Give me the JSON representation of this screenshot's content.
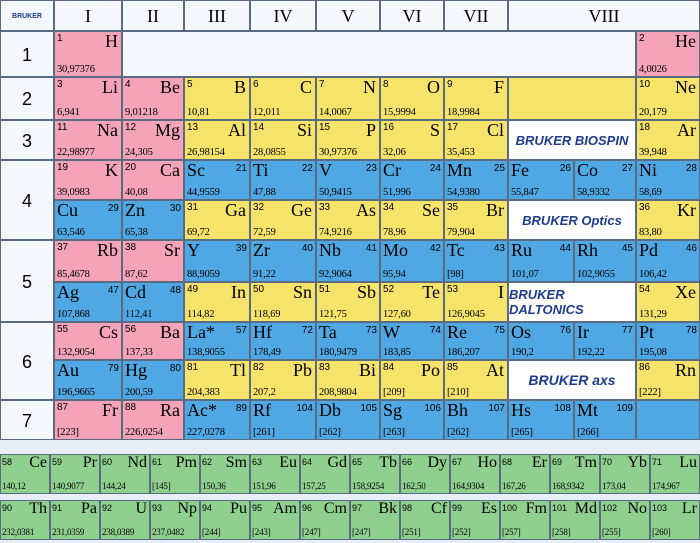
{
  "corner_logo": "BRUKER",
  "groups": [
    "I",
    "II",
    "III",
    "IV",
    "V",
    "VI",
    "VII",
    "VIII"
  ],
  "periods": [
    "1",
    "2",
    "3",
    "4",
    "5",
    "6",
    "7"
  ],
  "brands": {
    "biospin": "BRUKER BIOSPIN",
    "optics": "BRUKER Optics",
    "daltonics": "BRUKER DALTONICS",
    "axs": "BRUKER axs"
  },
  "elements": [
    {
      "n": "1",
      "s": "H",
      "m": "30,97376",
      "color": "pink",
      "r": 1,
      "c": 0,
      "side": "L"
    },
    {
      "n": "2",
      "s": "He",
      "m": "4,0026",
      "color": "pink",
      "r": 1,
      "c": 10,
      "side": "L"
    },
    {
      "n": "3",
      "s": "Li",
      "m": "6,941",
      "color": "pink",
      "r": 2,
      "c": 0,
      "side": "L"
    },
    {
      "n": "4",
      "s": "Be",
      "m": "9,01218",
      "color": "pink",
      "r": 2,
      "c": 1,
      "side": "L"
    },
    {
      "n": "5",
      "s": "B",
      "m": "10,81",
      "color": "yellow",
      "r": 2,
      "c": 2,
      "side": "L"
    },
    {
      "n": "6",
      "s": "C",
      "m": "12,011",
      "color": "yellow",
      "r": 2,
      "c": 3,
      "side": "L"
    },
    {
      "n": "7",
      "s": "N",
      "m": "14,0067",
      "color": "yellow",
      "r": 2,
      "c": 4,
      "side": "L"
    },
    {
      "n": "8",
      "s": "O",
      "m": "15,9994",
      "color": "yellow",
      "r": 2,
      "c": 5,
      "side": "L"
    },
    {
      "n": "9",
      "s": "F",
      "m": "18,9984",
      "color": "yellow",
      "r": 2,
      "c": 6,
      "side": "L"
    },
    {
      "n": "10",
      "s": "Ne",
      "m": "20,179",
      "color": "yellow",
      "r": 2,
      "c": 10,
      "side": "L"
    },
    {
      "n": "11",
      "s": "Na",
      "m": "22,98977",
      "color": "pink",
      "r": 3,
      "c": 0,
      "side": "L"
    },
    {
      "n": "12",
      "s": "Mg",
      "m": "24,305",
      "color": "pink",
      "r": 3,
      "c": 1,
      "side": "L"
    },
    {
      "n": "13",
      "s": "Al",
      "m": "26,98154",
      "color": "yellow",
      "r": 3,
      "c": 2,
      "side": "L"
    },
    {
      "n": "14",
      "s": "Si",
      "m": "28,0855",
      "color": "yellow",
      "r": 3,
      "c": 3,
      "side": "L"
    },
    {
      "n": "15",
      "s": "P",
      "m": "30,97376",
      "color": "yellow",
      "r": 3,
      "c": 4,
      "side": "L"
    },
    {
      "n": "16",
      "s": "S",
      "m": "32,06",
      "color": "yellow",
      "r": 3,
      "c": 5,
      "side": "L"
    },
    {
      "n": "17",
      "s": "Cl",
      "m": "35,453",
      "color": "yellow",
      "r": 3,
      "c": 6,
      "side": "L"
    },
    {
      "n": "18",
      "s": "Ar",
      "m": "39,948",
      "color": "yellow",
      "r": 3,
      "c": 10,
      "side": "L"
    },
    {
      "n": "19",
      "s": "K",
      "m": "39,0983",
      "color": "pink",
      "r": 4,
      "c": 0,
      "side": "L"
    },
    {
      "n": "20",
      "s": "Ca",
      "m": "40,08",
      "color": "pink",
      "r": 4,
      "c": 1,
      "side": "L"
    },
    {
      "n": "21",
      "s": "Sc",
      "m": "44,9559",
      "color": "blue",
      "r": 4,
      "c": 2,
      "side": "R"
    },
    {
      "n": "22",
      "s": "Ti",
      "m": "47,88",
      "color": "blue",
      "r": 4,
      "c": 3,
      "side": "R"
    },
    {
      "n": "23",
      "s": "V",
      "m": "50,9415",
      "color": "blue",
      "r": 4,
      "c": 4,
      "side": "R"
    },
    {
      "n": "24",
      "s": "Cr",
      "m": "51,996",
      "color": "blue",
      "r": 4,
      "c": 5,
      "side": "R"
    },
    {
      "n": "25",
      "s": "Mn",
      "m": "54,9380",
      "color": "blue",
      "r": 4,
      "c": 6,
      "side": "R"
    },
    {
      "n": "26",
      "s": "Fe",
      "m": "55,847",
      "color": "blue",
      "r": 4,
      "c": 7,
      "side": "R"
    },
    {
      "n": "27",
      "s": "Co",
      "m": "58,9332",
      "color": "blue",
      "r": 4,
      "c": 8,
      "side": "R"
    },
    {
      "n": "28",
      "s": "Ni",
      "m": "58,69",
      "color": "blue",
      "r": 4,
      "c": 10,
      "side": "R"
    },
    {
      "n": "29",
      "s": "Cu",
      "m": "63,546",
      "color": "blue",
      "r": 4.5,
      "c": 0,
      "side": "R"
    },
    {
      "n": "30",
      "s": "Zn",
      "m": "65,38",
      "color": "blue",
      "r": 4.5,
      "c": 1,
      "side": "R"
    },
    {
      "n": "31",
      "s": "Ga",
      "m": "69,72",
      "color": "yellow",
      "r": 4.5,
      "c": 2,
      "side": "L"
    },
    {
      "n": "32",
      "s": "Ge",
      "m": "72,59",
      "color": "yellow",
      "r": 4.5,
      "c": 3,
      "side": "L"
    },
    {
      "n": "33",
      "s": "As",
      "m": "74,9216",
      "color": "yellow",
      "r": 4.5,
      "c": 4,
      "side": "L"
    },
    {
      "n": "34",
      "s": "Se",
      "m": "78,96",
      "color": "yellow",
      "r": 4.5,
      "c": 5,
      "side": "L"
    },
    {
      "n": "35",
      "s": "Br",
      "m": "79,904",
      "color": "yellow",
      "r": 4.5,
      "c": 6,
      "side": "L"
    },
    {
      "n": "36",
      "s": "Kr",
      "m": "83,80",
      "color": "yellow",
      "r": 4.5,
      "c": 10,
      "side": "L"
    },
    {
      "n": "37",
      "s": "Rb",
      "m": "85,4678",
      "color": "pink",
      "r": 5,
      "c": 0,
      "side": "L"
    },
    {
      "n": "38",
      "s": "Sr",
      "m": "87,62",
      "color": "pink",
      "r": 5,
      "c": 1,
      "side": "L"
    },
    {
      "n": "39",
      "s": "Y",
      "m": "88,9059",
      "color": "blue",
      "r": 5,
      "c": 2,
      "side": "R"
    },
    {
      "n": "40",
      "s": "Zr",
      "m": "91,22",
      "color": "blue",
      "r": 5,
      "c": 3,
      "side": "R"
    },
    {
      "n": "41",
      "s": "Nb",
      "m": "92,9064",
      "color": "blue",
      "r": 5,
      "c": 4,
      "side": "R"
    },
    {
      "n": "42",
      "s": "Mo",
      "m": "95,94",
      "color": "blue",
      "r": 5,
      "c": 5,
      "side": "R"
    },
    {
      "n": "43",
      "s": "Tc",
      "m": "[98]",
      "color": "blue",
      "r": 5,
      "c": 6,
      "side": "R"
    },
    {
      "n": "44",
      "s": "Ru",
      "m": "101,07",
      "color": "blue",
      "r": 5,
      "c": 7,
      "side": "R"
    },
    {
      "n": "45",
      "s": "Rh",
      "m": "102,9055",
      "color": "blue",
      "r": 5,
      "c": 8,
      "side": "R"
    },
    {
      "n": "46",
      "s": "Pd",
      "m": "106,42",
      "color": "blue",
      "r": 5,
      "c": 10,
      "side": "R"
    },
    {
      "n": "47",
      "s": "Ag",
      "m": "107,868",
      "color": "blue",
      "r": 5.5,
      "c": 0,
      "side": "R"
    },
    {
      "n": "48",
      "s": "Cd",
      "m": "112,41",
      "color": "blue",
      "r": 5.5,
      "c": 1,
      "side": "R"
    },
    {
      "n": "49",
      "s": "In",
      "m": "114,82",
      "color": "yellow",
      "r": 5.5,
      "c": 2,
      "side": "L"
    },
    {
      "n": "50",
      "s": "Sn",
      "m": "118,69",
      "color": "yellow",
      "r": 5.5,
      "c": 3,
      "side": "L"
    },
    {
      "n": "51",
      "s": "Sb",
      "m": "121,75",
      "color": "yellow",
      "r": 5.5,
      "c": 4,
      "side": "L"
    },
    {
      "n": "52",
      "s": "Te",
      "m": "127,60",
      "color": "yellow",
      "r": 5.5,
      "c": 5,
      "side": "L"
    },
    {
      "n": "53",
      "s": "I",
      "m": "126,9045",
      "color": "yellow",
      "r": 5.5,
      "c": 6,
      "side": "L"
    },
    {
      "n": "54",
      "s": "Xe",
      "m": "131,29",
      "color": "yellow",
      "r": 5.5,
      "c": 10,
      "side": "L"
    },
    {
      "n": "55",
      "s": "Cs",
      "m": "132,9054",
      "color": "pink",
      "r": 6,
      "c": 0,
      "side": "L"
    },
    {
      "n": "56",
      "s": "Ba",
      "m": "137,33",
      "color": "pink",
      "r": 6,
      "c": 1,
      "side": "L"
    },
    {
      "n": "57",
      "s": "La*",
      "m": "138,9055",
      "color": "blue",
      "r": 6,
      "c": 2,
      "side": "R"
    },
    {
      "n": "72",
      "s": "Hf",
      "m": "178,49",
      "color": "blue",
      "r": 6,
      "c": 3,
      "side": "R"
    },
    {
      "n": "73",
      "s": "Ta",
      "m": "180,9479",
      "color": "blue",
      "r": 6,
      "c": 4,
      "side": "R"
    },
    {
      "n": "74",
      "s": "W",
      "m": "183,85",
      "color": "blue",
      "r": 6,
      "c": 5,
      "side": "R"
    },
    {
      "n": "75",
      "s": "Re",
      "m": "186,207",
      "color": "blue",
      "r": 6,
      "c": 6,
      "side": "R"
    },
    {
      "n": "76",
      "s": "Os",
      "m": "190,2",
      "color": "blue",
      "r": 6,
      "c": 7,
      "side": "R"
    },
    {
      "n": "77",
      "s": "Ir",
      "m": "192,22",
      "color": "blue",
      "r": 6,
      "c": 8,
      "side": "R"
    },
    {
      "n": "78",
      "s": "Pt",
      "m": "195,08",
      "color": "blue",
      "r": 6,
      "c": 10,
      "side": "R"
    },
    {
      "n": "79",
      "s": "Au",
      "m": "196,9665",
      "color": "blue",
      "r": 6.5,
      "c": 0,
      "side": "R"
    },
    {
      "n": "80",
      "s": "Hg",
      "m": "200,59",
      "color": "blue",
      "r": 6.5,
      "c": 1,
      "side": "R"
    },
    {
      "n": "81",
      "s": "Tl",
      "m": "204,383",
      "color": "yellow",
      "r": 6.5,
      "c": 2,
      "side": "L"
    },
    {
      "n": "82",
      "s": "Pb",
      "m": "207,2",
      "color": "yellow",
      "r": 6.5,
      "c": 3,
      "side": "L"
    },
    {
      "n": "83",
      "s": "Bi",
      "m": "208,9804",
      "color": "yellow",
      "r": 6.5,
      "c": 4,
      "side": "L"
    },
    {
      "n": "84",
      "s": "Po",
      "m": "[209]",
      "color": "yellow",
      "r": 6.5,
      "c": 5,
      "side": "L"
    },
    {
      "n": "85",
      "s": "At",
      "m": "[210]",
      "color": "yellow",
      "r": 6.5,
      "c": 6,
      "side": "L"
    },
    {
      "n": "86",
      "s": "Rn",
      "m": "[222]",
      "color": "yellow",
      "r": 6.5,
      "c": 10,
      "side": "L"
    },
    {
      "n": "87",
      "s": "Fr",
      "m": "[223]",
      "color": "pink",
      "r": 7,
      "c": 0,
      "side": "L"
    },
    {
      "n": "88",
      "s": "Ra",
      "m": "226,0254",
      "color": "pink",
      "r": 7,
      "c": 1,
      "side": "L"
    },
    {
      "n": "89",
      "s": "Ac*",
      "m": "227,0278",
      "color": "blue",
      "r": 7,
      "c": 2,
      "side": "R"
    },
    {
      "n": "104",
      "s": "Rf",
      "m": "[261]",
      "color": "blue",
      "r": 7,
      "c": 3,
      "side": "R"
    },
    {
      "n": "105",
      "s": "Db",
      "m": "[262]",
      "color": "blue",
      "r": 7,
      "c": 4,
      "side": "R"
    },
    {
      "n": "106",
      "s": "Sg",
      "m": "[263]",
      "color": "blue",
      "r": 7,
      "c": 5,
      "side": "R"
    },
    {
      "n": "107",
      "s": "Bh",
      "m": "[262]",
      "color": "blue",
      "r": 7,
      "c": 6,
      "side": "R"
    },
    {
      "n": "108",
      "s": "Hs",
      "m": "[265]",
      "color": "blue",
      "r": 7,
      "c": 7,
      "side": "R"
    },
    {
      "n": "109",
      "s": "Mt",
      "m": "[266]",
      "color": "blue",
      "r": 7,
      "c": 8,
      "side": "R"
    }
  ],
  "lanthanides": [
    {
      "n": "58",
      "s": "Ce",
      "m": "140,12"
    },
    {
      "n": "59",
      "s": "Pr",
      "m": "140,9077"
    },
    {
      "n": "60",
      "s": "Nd",
      "m": "144,24"
    },
    {
      "n": "61",
      "s": "Pm",
      "m": "[145]"
    },
    {
      "n": "62",
      "s": "Sm",
      "m": "150,36"
    },
    {
      "n": "63",
      "s": "Eu",
      "m": "151,96"
    },
    {
      "n": "64",
      "s": "Gd",
      "m": "157,25"
    },
    {
      "n": "65",
      "s": "Tb",
      "m": "158,9254"
    },
    {
      "n": "66",
      "s": "Dy",
      "m": "162,50"
    },
    {
      "n": "67",
      "s": "Ho",
      "m": "164,9304"
    },
    {
      "n": "68",
      "s": "Er",
      "m": "167,26"
    },
    {
      "n": "69",
      "s": "Tm",
      "m": "168,9342"
    },
    {
      "n": "70",
      "s": "Yb",
      "m": "173,04"
    },
    {
      "n": "71",
      "s": "Lu",
      "m": "174,967"
    }
  ],
  "actinides": [
    {
      "n": "90",
      "s": "Th",
      "m": "232,0381"
    },
    {
      "n": "91",
      "s": "Pa",
      "m": "231,0359"
    },
    {
      "n": "92",
      "s": "U",
      "m": "238,0389"
    },
    {
      "n": "93",
      "s": "Np",
      "m": "237,0482"
    },
    {
      "n": "94",
      "s": "Pu",
      "m": "[244]"
    },
    {
      "n": "95",
      "s": "Am",
      "m": "[243]"
    },
    {
      "n": "96",
      "s": "Cm",
      "m": "[247]"
    },
    {
      "n": "97",
      "s": "Bk",
      "m": "[247]"
    },
    {
      "n": "98",
      "s": "Cf",
      "m": "[251]"
    },
    {
      "n": "99",
      "s": "Es",
      "m": "[252]"
    },
    {
      "n": "100",
      "s": "Fm",
      "m": "[257]"
    },
    {
      "n": "101",
      "s": "Md",
      "m": "[258]"
    },
    {
      "n": "102",
      "s": "No",
      "m": "[255]"
    },
    {
      "n": "103",
      "s": "Lr",
      "m": "[260]"
    }
  ]
}
